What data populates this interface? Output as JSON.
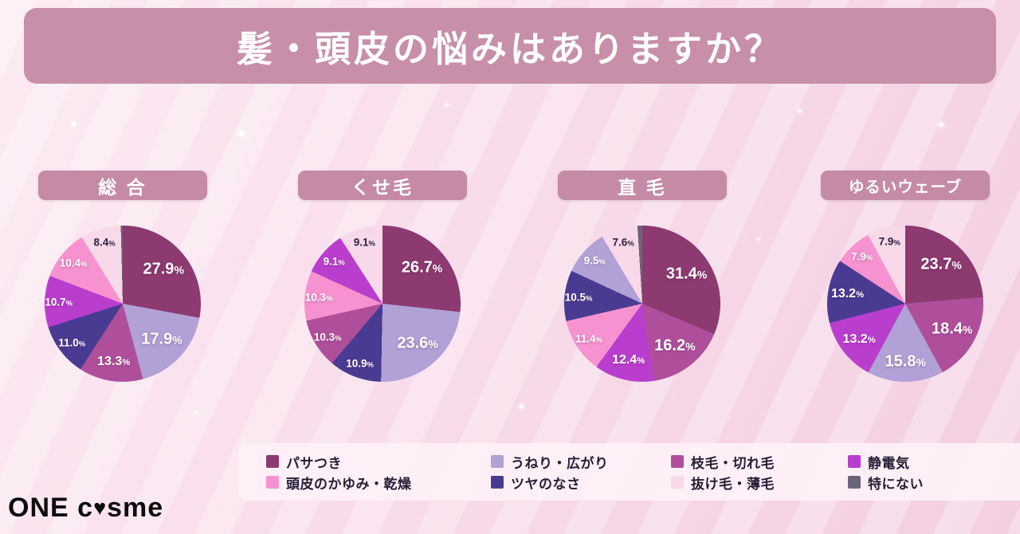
{
  "title": "髪・頭皮の悩みはありますか？",
  "decor": {
    "sparkle": "✦"
  },
  "logo": {
    "one": "ONE",
    "c": "c",
    "heart": "♥",
    "sme": "sme"
  },
  "theme": {
    "banner_bg": "#c78fa9",
    "pill_bg": "#c48aa6",
    "page_bg": "#f7dbe8",
    "legend_bg": "#fdeef6",
    "label_dark": "#2b2343",
    "label_light": "#ffffff"
  },
  "legend": {
    "items": [
      {
        "label": "パサつき",
        "color": "#8c3a70"
      },
      {
        "label": "うねり・広がり",
        "color": "#b1a1d6"
      },
      {
        "label": "枝毛・切れ毛",
        "color": "#af4f9c"
      },
      {
        "label": "静電気",
        "color": "#ba3ecd"
      },
      {
        "label": "頭皮のかゆみ・乾燥",
        "color": "#f792d0"
      },
      {
        "label": "ツヤのなさ",
        "color": "#4a3b92"
      },
      {
        "label": "抜け毛・薄毛",
        "color": "#f8d9e9",
        "light": true
      },
      {
        "label": "特にない",
        "color": "#6b6479"
      }
    ]
  },
  "chart_data": [
    {
      "type": "pie",
      "title": "総 合",
      "unit": "%",
      "slices": [
        {
          "label": "パサつき",
          "value": 27.9
        },
        {
          "label": "うねり・広がり",
          "value": 17.9
        },
        {
          "label": "枝毛・切れ毛",
          "value": 13.3
        },
        {
          "label": "ツヤのなさ",
          "value": 11.0
        },
        {
          "label": "静電気",
          "value": 10.7
        },
        {
          "label": "頭皮のかゆみ・乾燥",
          "value": 10.4
        },
        {
          "label": "抜け毛・薄毛",
          "value": 8.4
        },
        {
          "label": "特にない",
          "value": 0.4
        }
      ]
    },
    {
      "type": "pie",
      "title": "くせ毛",
      "unit": "%",
      "slices": [
        {
          "label": "パサつき",
          "value": 26.7
        },
        {
          "label": "うねり・広がり",
          "value": 23.6
        },
        {
          "label": "ツヤのなさ",
          "value": 10.9
        },
        {
          "label": "枝毛・切れ毛",
          "value": 10.3
        },
        {
          "label": "頭皮のかゆみ・乾燥",
          "value": 10.3
        },
        {
          "label": "静電気",
          "value": 9.1
        },
        {
          "label": "抜け毛・薄毛",
          "value": 9.1
        }
      ]
    },
    {
      "type": "pie",
      "title": "直 毛",
      "unit": "%",
      "slices": [
        {
          "label": "パサつき",
          "value": 31.4
        },
        {
          "label": "枝毛・切れ毛",
          "value": 16.2
        },
        {
          "label": "静電気",
          "value": 12.4
        },
        {
          "label": "頭皮のかゆみ・乾燥",
          "value": 11.4
        },
        {
          "label": "ツヤのなさ",
          "value": 10.5
        },
        {
          "label": "うねり・広がり",
          "value": 9.5
        },
        {
          "label": "抜け毛・薄毛",
          "value": 7.6
        },
        {
          "label": "特にない",
          "value": 1.0
        }
      ]
    },
    {
      "type": "pie",
      "title": "ゆるいウェーブ",
      "unit": "%",
      "slices": [
        {
          "label": "パサつき",
          "value": 23.7
        },
        {
          "label": "枝毛・切れ毛",
          "value": 18.4
        },
        {
          "label": "うねり・広がり",
          "value": 15.8
        },
        {
          "label": "静電気",
          "value": 13.2
        },
        {
          "label": "ツヤのなさ",
          "value": 13.2
        },
        {
          "label": "頭皮のかゆみ・乾燥",
          "value": 7.9
        },
        {
          "label": "抜け毛・薄毛",
          "value": 7.9
        }
      ]
    }
  ]
}
